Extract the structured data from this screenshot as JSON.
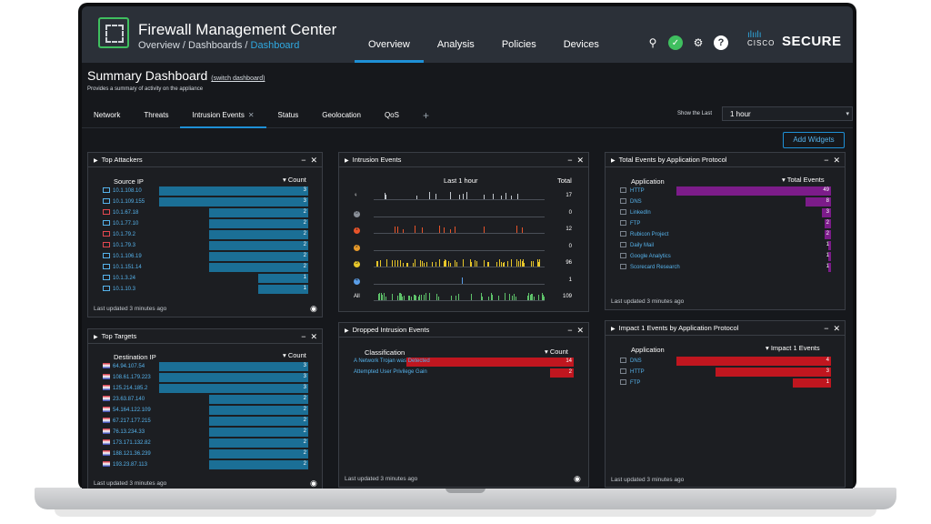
{
  "header": {
    "app_title": "Firewall Management Center",
    "breadcrumb": [
      "Overview",
      "Dashboards",
      "Dashboard"
    ],
    "nav": [
      "Overview",
      "Analysis",
      "Policies",
      "Devices"
    ],
    "active_nav": "Overview",
    "brand_small": "CISCO",
    "brand": "SECURE",
    "accent_color": "#1e90d6",
    "icons": [
      "search-icon",
      "status-check-icon",
      "gear-icon",
      "help-icon"
    ]
  },
  "summary": {
    "title": "Summary Dashboard",
    "switch_link": "(switch dashboard)",
    "description": "Provides a summary of activity on the appliance"
  },
  "dashboard_tabs": [
    "Network",
    "Threats",
    "Intrusion Events",
    "Status",
    "Geolocation",
    "QoS"
  ],
  "active_tab": "Intrusion Events",
  "show_last": {
    "label": "Show the Last",
    "value": "1 hour"
  },
  "add_widgets": "Add Widgets",
  "widgets": {
    "top_attackers": {
      "title": "Top Attackers",
      "col_label": "Source IP",
      "col_count": "▾ Count",
      "rows": [
        {
          "ip": "10.1.108.10",
          "count": 3
        },
        {
          "ip": "10.1.109.155",
          "count": 3
        },
        {
          "ip": "10.1.67.18",
          "count": 2
        },
        {
          "ip": "10.1.77.10",
          "count": 2
        },
        {
          "ip": "10.1.79.2",
          "count": 2
        },
        {
          "ip": "10.1.79.3",
          "count": 2
        },
        {
          "ip": "10.1.106.19",
          "count": 2
        },
        {
          "ip": "10.1.151.14",
          "count": 2
        },
        {
          "ip": "10.1.3.24",
          "count": 1
        },
        {
          "ip": "10.1.10.3",
          "count": 1
        }
      ],
      "footer": "Last updated 3 minutes ago"
    },
    "top_targets": {
      "title": "Top Targets",
      "col_label": "Destination IP",
      "col_count": "▾ Count",
      "rows": [
        {
          "ip": "64.94.107.54",
          "count": 3
        },
        {
          "ip": "108.61.179.223",
          "count": 3
        },
        {
          "ip": "125.214.185.2",
          "count": 3
        },
        {
          "ip": "23.63.87.140",
          "count": 2
        },
        {
          "ip": "54.164.122.109",
          "count": 2
        },
        {
          "ip": "67.217.177.215",
          "count": 2
        },
        {
          "ip": "76.13.234.33",
          "count": 2
        },
        {
          "ip": "173.171.132.82",
          "count": 2
        },
        {
          "ip": "188.121.36.239",
          "count": 2
        },
        {
          "ip": "193.23.87.113",
          "count": 2
        }
      ],
      "footer": "Last updated 3 minutes ago"
    },
    "intrusion_events": {
      "title": "Intrusion Events",
      "col_label": "Last 1 hour",
      "col_total": "Total",
      "levels": [
        {
          "label": "",
          "total": 17,
          "color": "#c4c9cf"
        },
        {
          "label": "0",
          "total": 0,
          "color": "#8a9099"
        },
        {
          "label": "1",
          "total": 12,
          "color": "#e8542a"
        },
        {
          "label": "2",
          "total": 0,
          "color": "#e89a2a"
        },
        {
          "label": "3",
          "total": 96,
          "color": "#e8c72a"
        },
        {
          "label": "4",
          "total": 1,
          "color": "#5a9ee8"
        },
        {
          "label": "All",
          "total": 109,
          "color": "#5ec26a"
        }
      ]
    },
    "dropped_events": {
      "title": "Dropped Intrusion Events",
      "col_label": "Classification",
      "col_count": "▾ Count",
      "rows": [
        {
          "label": "A Network Trojan was Detected",
          "count": 14
        },
        {
          "label": "Attempted User Privilege Gain",
          "count": 2
        }
      ],
      "footer": "Last updated 3 minutes ago"
    },
    "total_by_app": {
      "title": "Total Events by Application Protocol",
      "col_label": "Application",
      "col_count": "▾ Total Events",
      "rows": [
        {
          "app": "HTTP",
          "count": 49
        },
        {
          "app": "DNS",
          "count": 8
        },
        {
          "app": "LinkedIn",
          "count": 3
        },
        {
          "app": "FTP",
          "count": 2
        },
        {
          "app": "Rubicon Project",
          "count": 2
        },
        {
          "app": "Daily Mail",
          "count": 1
        },
        {
          "app": "Google Analytics",
          "count": 1
        },
        {
          "app": "Scorecard Research",
          "count": 1
        }
      ],
      "footer": "Last updated 3 minutes ago"
    },
    "impact1_by_app": {
      "title": "Impact 1 Events by Application Protocol",
      "col_label": "Application",
      "col_count": "▾ Impact 1 Events",
      "rows": [
        {
          "app": "DNS",
          "count": 4
        },
        {
          "app": "HTTP",
          "count": 3
        },
        {
          "app": "FTP",
          "count": 1
        }
      ],
      "footer": "Last updated 3 minutes ago"
    }
  }
}
